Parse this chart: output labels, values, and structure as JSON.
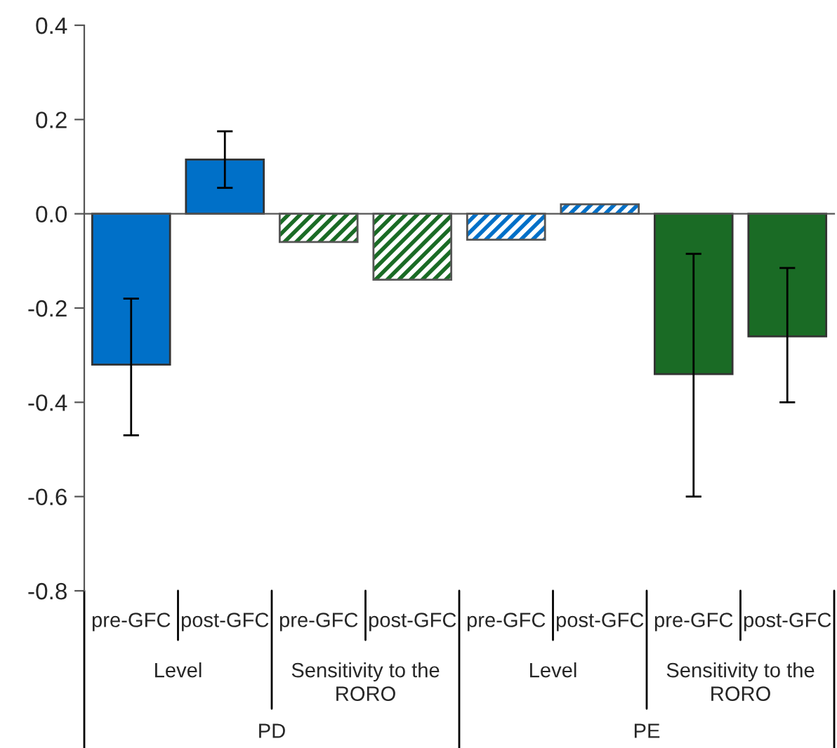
{
  "chart_data": {
    "type": "bar",
    "categories": [
      "pre-GFC",
      "post-GFC",
      "pre-GFC",
      "post-GFC",
      "pre-GFC",
      "post-GFC",
      "pre-GFC",
      "post-GFC"
    ],
    "series": [
      {
        "colors": [
          "#0070c8",
          "#0070c8",
          null,
          null,
          null,
          null,
          "#1a6b25",
          "#1a6b25"
        ],
        "values": [
          -0.32,
          0.115,
          null,
          null,
          null,
          null,
          -0.34,
          -0.26
        ],
        "errors": [
          [
            -0.47,
            -0.18
          ],
          [
            0.055,
            0.175
          ],
          null,
          null,
          null,
          null,
          [
            -0.6,
            -0.085
          ],
          [
            -0.4,
            -0.115
          ]
        ]
      },
      {
        "colors": [
          null,
          null,
          "#1a6b25",
          "#1a6b25",
          "#0070c8",
          "#0070c8",
          null,
          null
        ],
        "values": [
          null,
          null,
          -0.06,
          -0.14,
          -0.055,
          0.02,
          null,
          null
        ]
      }
    ],
    "annotations": [
      "Level",
      "Sensitivity to the\nRORO",
      "Level",
      "Sensitivity to the\nRORO",
      "PD",
      "PE"
    ],
    "ylim": [
      -0.8,
      0.4
    ],
    "yticks": [
      {
        "value": -0.8,
        "label": "-0.8"
      },
      {
        "value": -0.6,
        "label": "-0.6"
      },
      {
        "value": -0.4,
        "label": "-0.4"
      },
      {
        "value": -0.2,
        "label": "-0.2"
      },
      {
        "value": 0,
        "label": "0.0"
      },
      {
        "value": 0.2,
        "label": "0.2"
      },
      {
        "value": 0.4,
        "label": "0.4"
      }
    ],
    "legend": false
  }
}
